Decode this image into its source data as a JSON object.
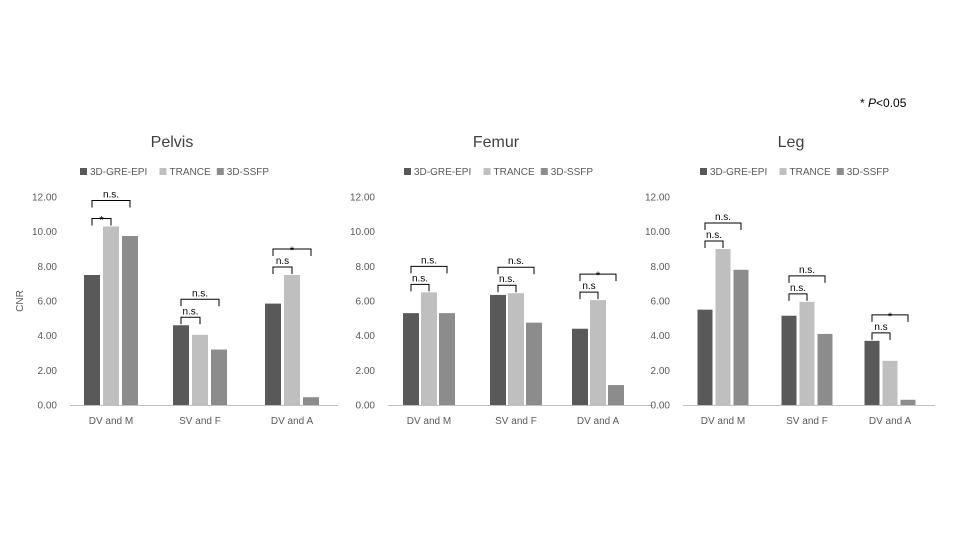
{
  "significance_note": {
    "star": "*",
    "p": "P",
    "threshold": "<0.05"
  },
  "chart_data": [
    {
      "type": "bar",
      "title": "Pelvis",
      "ylabel": "CNR",
      "xlabel": "",
      "ylim": [
        0,
        12
      ],
      "yticks": [
        "0.00",
        "2.00",
        "4.00",
        "6.00",
        "8.00",
        "10.00",
        "12.00"
      ],
      "categories": [
        "DV and M",
        "SV and F",
        "DV and A"
      ],
      "legend_position": "top",
      "series": [
        {
          "name": "3D-GRE-EPI",
          "color": "#595959",
          "values": [
            7.5,
            4.6,
            5.85
          ]
        },
        {
          "name": "TRANCE",
          "color": "#bfbfbf",
          "values": [
            10.3,
            4.05,
            7.5
          ]
        },
        {
          "name": "3D-SSFP",
          "color": "#8c8c8c",
          "values": [
            9.75,
            3.2,
            0.45
          ]
        }
      ],
      "annotations": [
        {
          "category": 0,
          "from": 0,
          "to": 1,
          "label": "*",
          "level": 1
        },
        {
          "category": 0,
          "from": 0,
          "to": 2,
          "label": "n.s.",
          "level": 2
        },
        {
          "category": 1,
          "from": 0,
          "to": 1,
          "label": "n.s.",
          "level": 1
        },
        {
          "category": 1,
          "from": 0,
          "to": 2,
          "label": "n.s.",
          "level": 2
        },
        {
          "category": 2,
          "from": 0,
          "to": 1,
          "label": "n.s",
          "level": 1
        },
        {
          "category": 2,
          "from": 0,
          "to": 2,
          "label": "*",
          "level": 2
        }
      ]
    },
    {
      "type": "bar",
      "title": "Femur",
      "ylabel": "",
      "xlabel": "",
      "ylim": [
        0,
        12
      ],
      "yticks": [
        "0.00",
        "2.00",
        "4.00",
        "6.00",
        "8.00",
        "10.00",
        "12.00"
      ],
      "categories": [
        "DV and M",
        "SV and F",
        "DV and A"
      ],
      "legend_position": "top",
      "series": [
        {
          "name": "3D-GRE-EPI",
          "color": "#595959",
          "values": [
            5.3,
            6.35,
            4.4
          ]
        },
        {
          "name": "TRANCE",
          "color": "#bfbfbf",
          "values": [
            6.5,
            6.45,
            6.05
          ]
        },
        {
          "name": "3D-SSFP",
          "color": "#8c8c8c",
          "values": [
            5.3,
            4.75,
            1.15
          ]
        }
      ],
      "annotations": [
        {
          "category": 0,
          "from": 0,
          "to": 1,
          "label": "n.s.",
          "level": 1
        },
        {
          "category": 0,
          "from": 0,
          "to": 2,
          "label": "n.s.",
          "level": 2
        },
        {
          "category": 1,
          "from": 0,
          "to": 1,
          "label": "n.s.",
          "level": 1
        },
        {
          "category": 1,
          "from": 0,
          "to": 2,
          "label": "n.s.",
          "level": 2
        },
        {
          "category": 2,
          "from": 0,
          "to": 1,
          "label": "n.s",
          "level": 1
        },
        {
          "category": 2,
          "from": 0,
          "to": 2,
          "label": "*",
          "level": 2
        }
      ]
    },
    {
      "type": "bar",
      "title": "Leg",
      "ylabel": "",
      "xlabel": "",
      "ylim": [
        0,
        12
      ],
      "yticks": [
        "0.00",
        "2.00",
        "4.00",
        "6.00",
        "8.00",
        "10.00",
        "12.00"
      ],
      "categories": [
        "DV and M",
        "SV and F",
        "DV and A"
      ],
      "legend_position": "top",
      "series": [
        {
          "name": "3D-GRE-EPI",
          "color": "#595959",
          "values": [
            5.5,
            5.15,
            3.7
          ]
        },
        {
          "name": "TRANCE",
          "color": "#bfbfbf",
          "values": [
            9.0,
            5.95,
            2.55
          ]
        },
        {
          "name": "3D-SSFP",
          "color": "#8c8c8c",
          "values": [
            7.8,
            4.1,
            0.3
          ]
        }
      ],
      "annotations": [
        {
          "category": 0,
          "from": 0,
          "to": 1,
          "label": "n.s.",
          "level": 1
        },
        {
          "category": 0,
          "from": 0,
          "to": 2,
          "label": "n.s.",
          "level": 2
        },
        {
          "category": 1,
          "from": 0,
          "to": 1,
          "label": "n.s.",
          "level": 1
        },
        {
          "category": 1,
          "from": 0,
          "to": 2,
          "label": "n.s.",
          "level": 2
        },
        {
          "category": 2,
          "from": 0,
          "to": 1,
          "label": "n.s",
          "level": 1
        },
        {
          "category": 2,
          "from": 0,
          "to": 2,
          "label": "*",
          "level": 2
        }
      ]
    }
  ]
}
